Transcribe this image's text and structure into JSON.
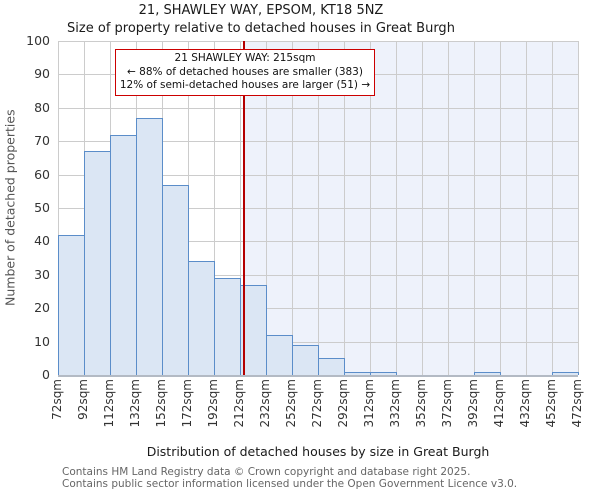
{
  "title": "21, SHAWLEY WAY, EPSOM, KT18 5NZ",
  "subtitle": "Size of property relative to detached houses in Great Burgh",
  "annotation": {
    "line1": "21 SHAWLEY WAY: 215sqm",
    "line2": "← 88% of detached houses are smaller (383)",
    "line3": "12% of semi-detached houses are larger (51) →"
  },
  "chart_data": {
    "type": "bar",
    "title": "21, SHAWLEY WAY, EPSOM, KT18 5NZ",
    "subtitle": "Size of property relative to detached houses in Great Burgh",
    "xlabel": "Distribution of detached houses by size in Great Burgh",
    "ylabel": "Number of detached properties",
    "bin_start_sqm": 72,
    "bin_width_sqm": 20,
    "categories": [
      "72sqm",
      "92sqm",
      "112sqm",
      "132sqm",
      "152sqm",
      "172sqm",
      "192sqm",
      "212sqm",
      "232sqm",
      "252sqm",
      "272sqm",
      "292sqm",
      "312sqm",
      "332sqm",
      "352sqm",
      "372sqm",
      "392sqm",
      "412sqm",
      "432sqm",
      "452sqm",
      "472sqm"
    ],
    "values": [
      42,
      67,
      72,
      77,
      57,
      34,
      29,
      27,
      12,
      9,
      5,
      1,
      1,
      0,
      0,
      0,
      1,
      0,
      0,
      1
    ],
    "ylim": [
      0,
      100
    ],
    "yticks": [
      0,
      10,
      20,
      30,
      40,
      50,
      60,
      70,
      80,
      90,
      100
    ],
    "grid": true,
    "legend": "none",
    "marker_value_sqm": 215,
    "shaded_region": "right-of-marker"
  },
  "colors": {
    "bar_fill": "#dbe6f4",
    "bar_edge": "#5b8dc9",
    "marker_line": "#b40000",
    "annotation_border": "#cc0000",
    "grid": "#cccccc",
    "shade": "#eef2fb",
    "axis": "#b3bac4"
  },
  "footer": {
    "line1": "Contains HM Land Registry data © Crown copyright and database right 2025.",
    "line2": "Contains public sector information licensed under the Open Government Licence v3.0."
  }
}
